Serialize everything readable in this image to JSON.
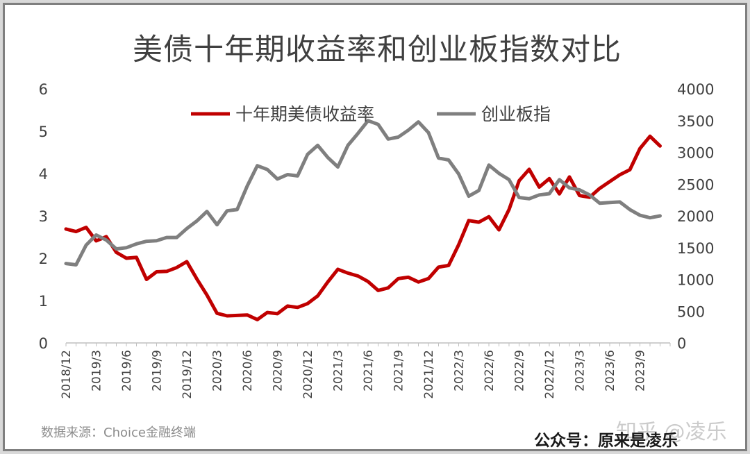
{
  "chart_data": {
    "type": "line",
    "title": "美债十年期收益率和创业板指数对比",
    "x_ticks": [
      "2018/12",
      "2019/3",
      "2019/6",
      "2019/9",
      "2019/12",
      "2020/3",
      "2020/6",
      "2020/9",
      "2020/12",
      "2021/3",
      "2021/6",
      "2021/9",
      "2021/12",
      "2022/3",
      "2022/6",
      "2022/9",
      "2022/12",
      "2023/3",
      "2023/6",
      "2023/9"
    ],
    "y_left": {
      "min": 0,
      "max": 6,
      "ticks": [
        0,
        1,
        2,
        3,
        4,
        5,
        6
      ]
    },
    "y_right": {
      "min": 0,
      "max": 4000,
      "ticks": [
        0,
        500,
        1000,
        1500,
        2000,
        2500,
        3000,
        3500,
        4000
      ]
    },
    "legend_position": "top-center",
    "grid": false,
    "series": [
      {
        "name": "十年期美债收益率",
        "axis": "left",
        "color": "#c00000",
        "points": [
          [
            "2018/12",
            2.69
          ],
          [
            "2019/1",
            2.63
          ],
          [
            "2019/2",
            2.73
          ],
          [
            "2019/3",
            2.41
          ],
          [
            "2019/4",
            2.51
          ],
          [
            "2019/5",
            2.14
          ],
          [
            "2019/6",
            2.0
          ],
          [
            "2019/7",
            2.02
          ],
          [
            "2019/8",
            1.5
          ],
          [
            "2019/9",
            1.68
          ],
          [
            "2019/10",
            1.69
          ],
          [
            "2019/11",
            1.78
          ],
          [
            "2019/12",
            1.92
          ],
          [
            "2020/1",
            1.51
          ],
          [
            "2020/2",
            1.13
          ],
          [
            "2020/3",
            0.7
          ],
          [
            "2020/4",
            0.64
          ],
          [
            "2020/5",
            0.65
          ],
          [
            "2020/6",
            0.66
          ],
          [
            "2020/7",
            0.55
          ],
          [
            "2020/8",
            0.72
          ],
          [
            "2020/9",
            0.69
          ],
          [
            "2020/10",
            0.87
          ],
          [
            "2020/11",
            0.84
          ],
          [
            "2020/12",
            0.93
          ],
          [
            "2021/1",
            1.11
          ],
          [
            "2021/2",
            1.44
          ],
          [
            "2021/3",
            1.74
          ],
          [
            "2021/4",
            1.65
          ],
          [
            "2021/5",
            1.58
          ],
          [
            "2021/6",
            1.45
          ],
          [
            "2021/7",
            1.24
          ],
          [
            "2021/8",
            1.3
          ],
          [
            "2021/9",
            1.52
          ],
          [
            "2021/10",
            1.55
          ],
          [
            "2021/11",
            1.44
          ],
          [
            "2021/12",
            1.52
          ],
          [
            "2022/1",
            1.79
          ],
          [
            "2022/2",
            1.83
          ],
          [
            "2022/3",
            2.32
          ],
          [
            "2022/4",
            2.89
          ],
          [
            "2022/5",
            2.85
          ],
          [
            "2022/6",
            2.98
          ],
          [
            "2022/7",
            2.67
          ],
          [
            "2022/8",
            3.15
          ],
          [
            "2022/9",
            3.83
          ],
          [
            "2022/10",
            4.1
          ],
          [
            "2022/11",
            3.68
          ],
          [
            "2022/12",
            3.88
          ],
          [
            "2023/1",
            3.52
          ],
          [
            "2023/2",
            3.92
          ],
          [
            "2023/3",
            3.48
          ],
          [
            "2023/4",
            3.44
          ],
          [
            "2023/5",
            3.65
          ],
          [
            "2023/6",
            3.81
          ],
          [
            "2023/7",
            3.97
          ],
          [
            "2023/8",
            4.09
          ],
          [
            "2023/9",
            4.59
          ],
          [
            "2023/10",
            4.88
          ],
          [
            "2023/11",
            4.65
          ]
        ]
      },
      {
        "name": "创业板指",
        "axis": "right",
        "color": "#7f7f7f",
        "points": [
          [
            "2018/12",
            1250
          ],
          [
            "2019/1",
            1230
          ],
          [
            "2019/2",
            1540
          ],
          [
            "2019/3",
            1700
          ],
          [
            "2019/4",
            1620
          ],
          [
            "2019/5",
            1480
          ],
          [
            "2019/6",
            1500
          ],
          [
            "2019/7",
            1560
          ],
          [
            "2019/8",
            1600
          ],
          [
            "2019/9",
            1610
          ],
          [
            "2019/10",
            1660
          ],
          [
            "2019/11",
            1660
          ],
          [
            "2019/12",
            1800
          ],
          [
            "2020/1",
            1920
          ],
          [
            "2020/2",
            2070
          ],
          [
            "2020/3",
            1860
          ],
          [
            "2020/4",
            2080
          ],
          [
            "2020/5",
            2100
          ],
          [
            "2020/6",
            2470
          ],
          [
            "2020/7",
            2790
          ],
          [
            "2020/8",
            2730
          ],
          [
            "2020/9",
            2580
          ],
          [
            "2020/10",
            2650
          ],
          [
            "2020/11",
            2630
          ],
          [
            "2020/12",
            2970
          ],
          [
            "2021/1",
            3110
          ],
          [
            "2021/2",
            2920
          ],
          [
            "2021/3",
            2770
          ],
          [
            "2021/4",
            3110
          ],
          [
            "2021/5",
            3300
          ],
          [
            "2021/6",
            3500
          ],
          [
            "2021/7",
            3440
          ],
          [
            "2021/8",
            3210
          ],
          [
            "2021/9",
            3240
          ],
          [
            "2021/10",
            3350
          ],
          [
            "2021/11",
            3480
          ],
          [
            "2021/12",
            3310
          ],
          [
            "2022/1",
            2910
          ],
          [
            "2022/2",
            2880
          ],
          [
            "2022/3",
            2660
          ],
          [
            "2022/4",
            2310
          ],
          [
            "2022/5",
            2400
          ],
          [
            "2022/6",
            2800
          ],
          [
            "2022/7",
            2670
          ],
          [
            "2022/8",
            2570
          ],
          [
            "2022/9",
            2290
          ],
          [
            "2022/10",
            2270
          ],
          [
            "2022/11",
            2330
          ],
          [
            "2022/12",
            2350
          ],
          [
            "2023/1",
            2570
          ],
          [
            "2023/2",
            2440
          ],
          [
            "2023/3",
            2410
          ],
          [
            "2023/4",
            2330
          ],
          [
            "2023/5",
            2200
          ],
          [
            "2023/6",
            2210
          ],
          [
            "2023/7",
            2220
          ],
          [
            "2023/8",
            2100
          ],
          [
            "2023/9",
            2010
          ],
          [
            "2023/10",
            1970
          ],
          [
            "2023/11",
            2000
          ]
        ]
      }
    ]
  },
  "footer": {
    "source": "数据来源：Choice金融终端",
    "account": "公众号：原来是凌乐",
    "watermark": "知乎 @凌乐"
  }
}
